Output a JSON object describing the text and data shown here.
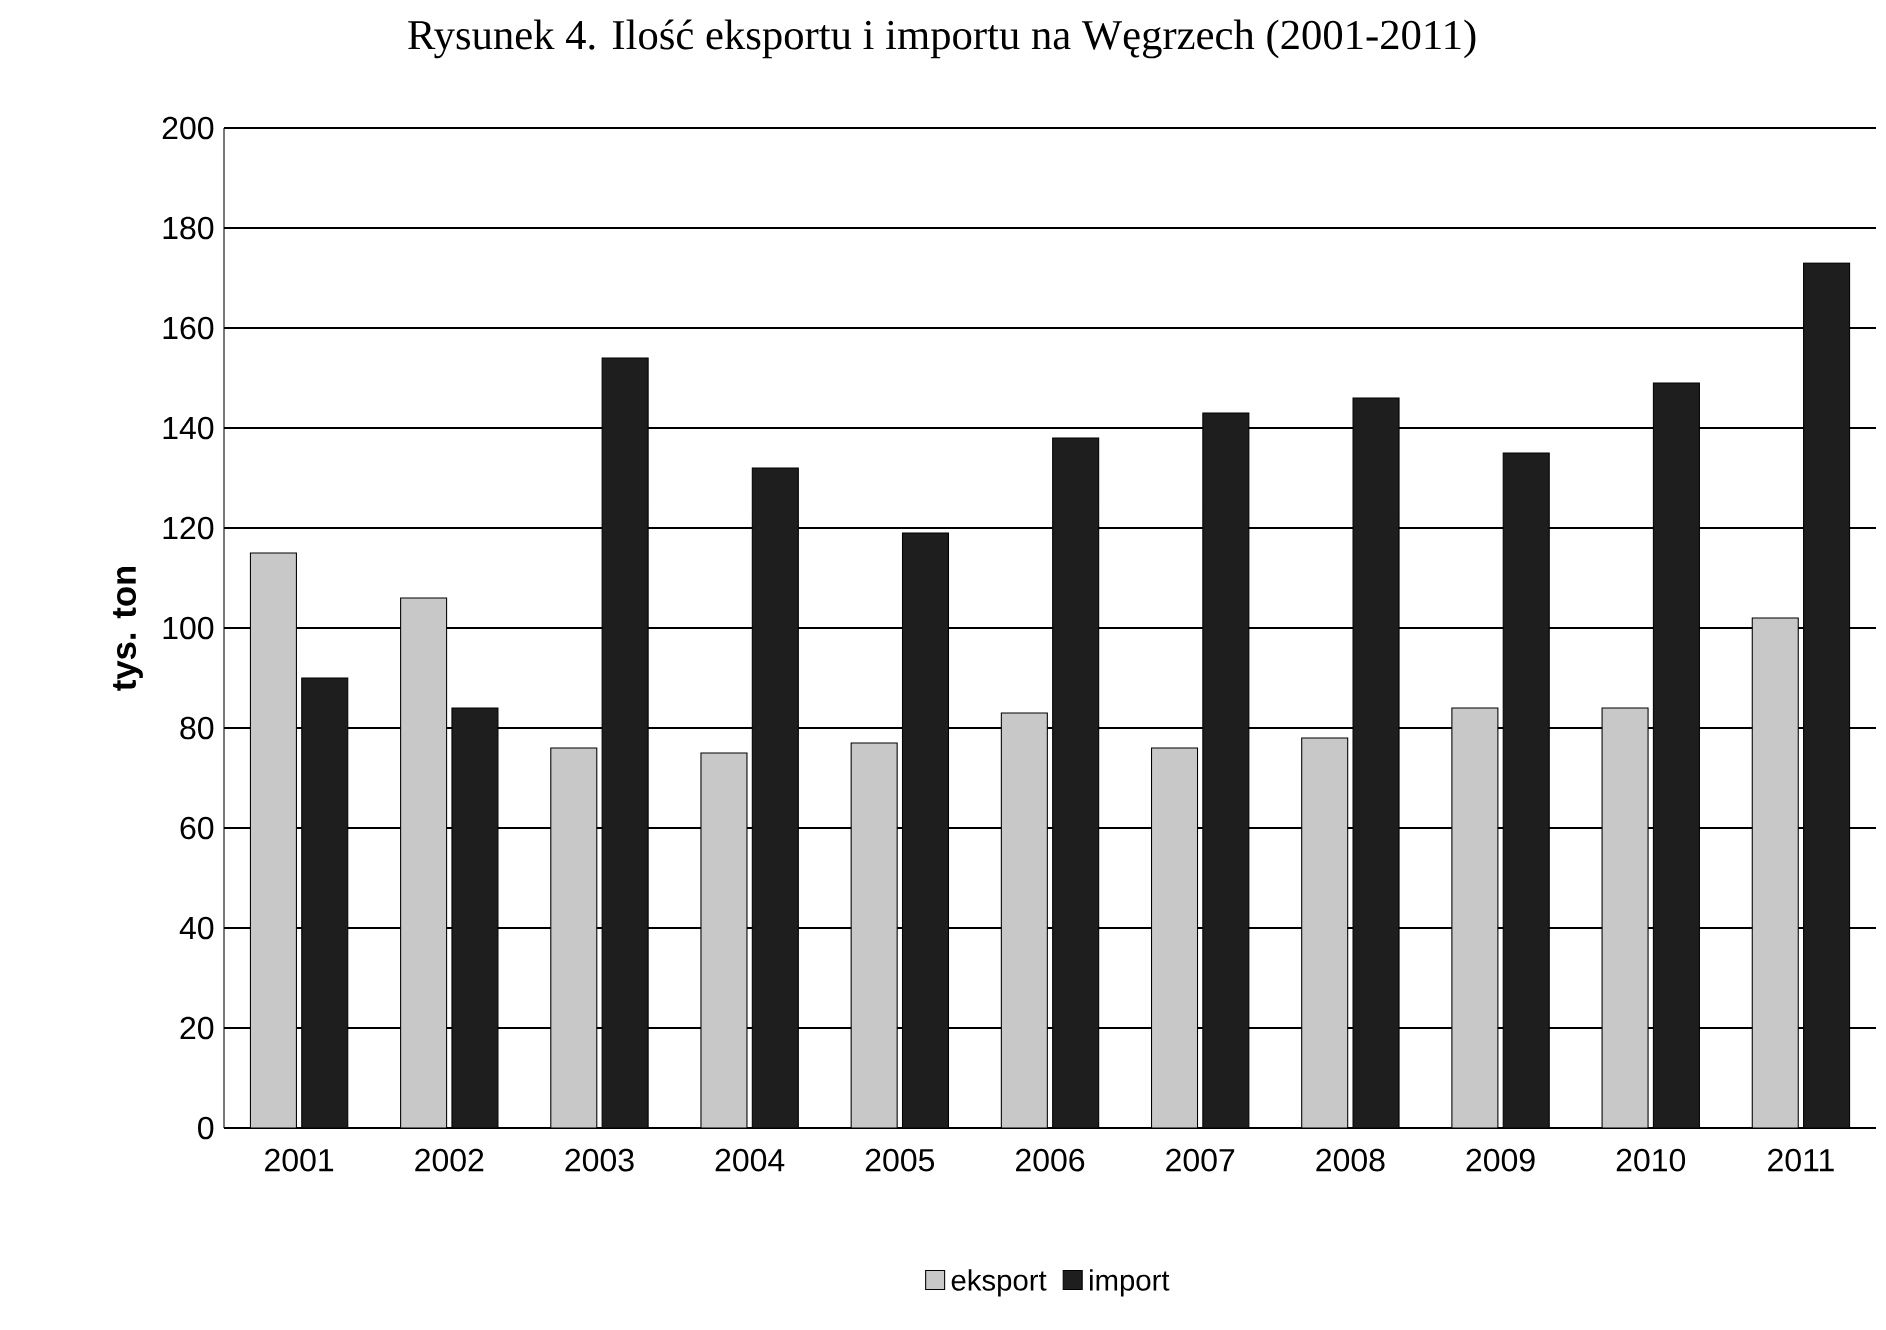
{
  "chart_data": {
    "type": "bar",
    "title": "Rysunek 4. Ilość eksportu i importu na Węgrzech (2001-2011)",
    "ylabel": "tys. ton",
    "categories": [
      "2001",
      "2002",
      "2003",
      "2004",
      "2005",
      "2006",
      "2007",
      "2008",
      "2009",
      "2010",
      "2011"
    ],
    "series": [
      {
        "name": "eksport",
        "color": "#c8c8c8",
        "values": [
          115,
          106,
          76,
          75,
          77,
          83,
          76,
          78,
          84,
          84,
          102
        ]
      },
      {
        "name": "import",
        "color": "#1e1e1e",
        "values": [
          90,
          84,
          154,
          132,
          119,
          138,
          143,
          146,
          135,
          149,
          173
        ]
      }
    ],
    "ylim": [
      0,
      200
    ],
    "yticks": [
      0,
      20,
      40,
      60,
      80,
      100,
      120,
      140,
      160,
      180,
      200
    ],
    "grid": "y",
    "legend": "bottom"
  }
}
